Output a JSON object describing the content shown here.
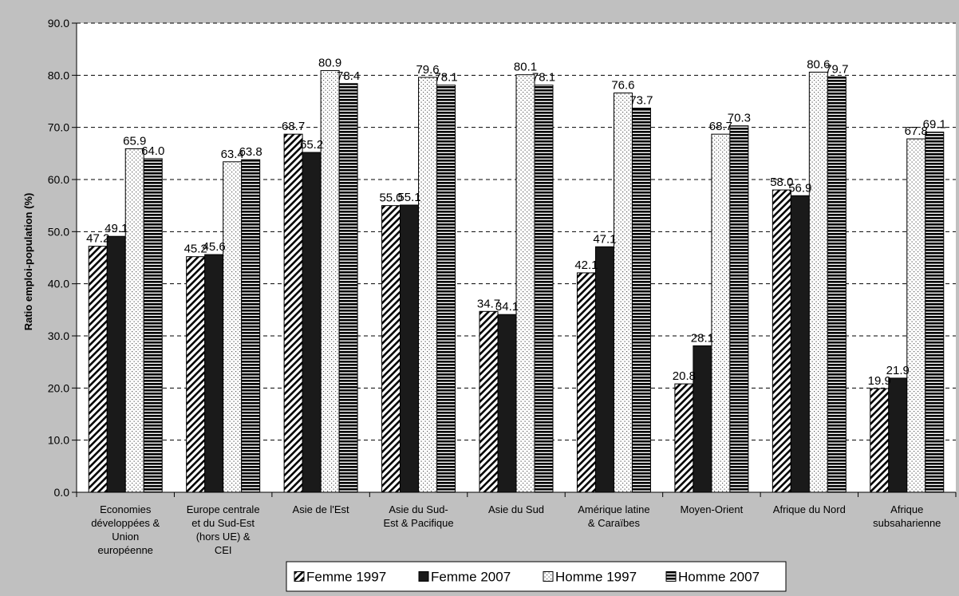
{
  "chart_data": {
    "type": "bar",
    "ylabel": "Ratio emploi-population (%)",
    "xlabel": "",
    "ylim": [
      0,
      90
    ],
    "yticks": [
      "0.0",
      "10.0",
      "20.0",
      "30.0",
      "40.0",
      "50.0",
      "60.0",
      "70.0",
      "80.0",
      "90.0"
    ],
    "grid": true,
    "legend_position": "bottom",
    "categories": [
      [
        "Economies",
        "développées &",
        "Union",
        "européenne"
      ],
      [
        "Europe centrale",
        "et du Sud-Est",
        "(hors UE) &",
        "CEI"
      ],
      [
        "Asie de l'Est"
      ],
      [
        "Asie du Sud-",
        "Est & Pacifique"
      ],
      [
        "Asie du Sud"
      ],
      [
        "Amérique latine",
        "& Caraïbes"
      ],
      [
        "Moyen-Orient"
      ],
      [
        "Afrique du Nord"
      ],
      [
        "Afrique",
        "subsaharienne"
      ]
    ],
    "series": [
      {
        "name": "Femme 1997",
        "pattern": "diagonal-hatch",
        "values": [
          47.2,
          45.2,
          68.7,
          55.0,
          34.7,
          42.1,
          20.8,
          58.0,
          19.9
        ],
        "labels": [
          "47.2",
          "45.2",
          "68.7",
          "55.0",
          "34.7",
          "42.1",
          "20.8",
          "58.0",
          "19.9"
        ]
      },
      {
        "name": "Femme 2007",
        "pattern": "solid",
        "values": [
          49.1,
          45.6,
          65.2,
          55.1,
          34.1,
          47.1,
          28.1,
          56.9,
          21.9
        ],
        "labels": [
          "49.1",
          "45.6",
          "65.2",
          "55.1",
          "34.1",
          "47.1",
          "28.1",
          "56.9",
          "21.9"
        ]
      },
      {
        "name": "Homme 1997",
        "pattern": "dots",
        "values": [
          65.9,
          63.4,
          80.9,
          79.6,
          80.1,
          76.6,
          68.7,
          80.6,
          67.8
        ],
        "labels": [
          "65.9",
          "63.4",
          "80.9",
          "79.6",
          "80.1",
          "76.6",
          "68.7",
          "80.6",
          "67.8"
        ]
      },
      {
        "name": "Homme 2007",
        "pattern": "horizontal-stripes",
        "values": [
          64.0,
          63.8,
          78.4,
          78.1,
          78.1,
          73.7,
          70.3,
          79.7,
          69.1
        ],
        "labels": [
          "64.0",
          "63.8",
          "78.4",
          "78.1",
          "78.1",
          "73.7",
          "70.3",
          "79.7",
          "69.1"
        ]
      }
    ],
    "colors": {
      "background": "#c0c0c0",
      "plot_area": "#ffffff",
      "bar_dark": "#1a1a1a",
      "grid": "#000000"
    }
  }
}
